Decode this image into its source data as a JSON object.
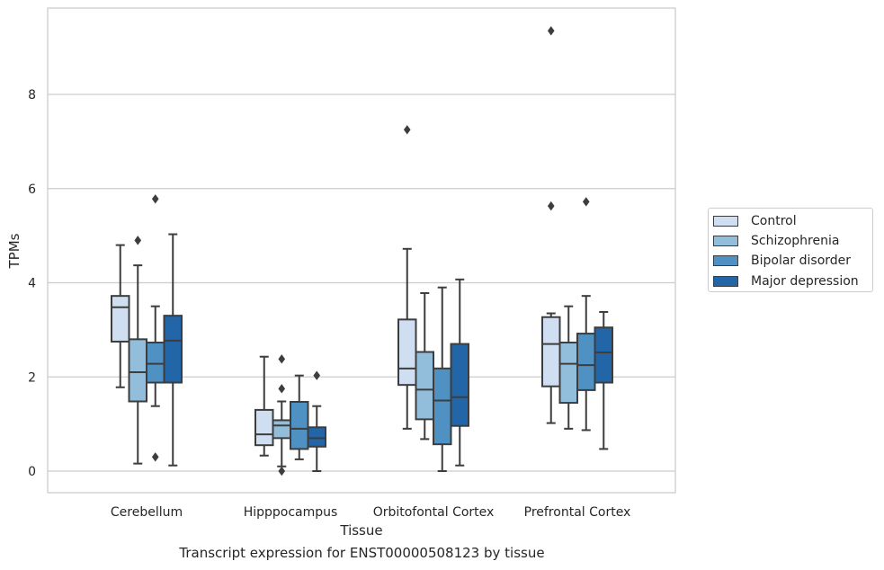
{
  "chart_data": {
    "type": "box",
    "title": "",
    "caption": "Transcript expression for ENST00000508123 by tissue",
    "xlabel": "Tissue",
    "ylabel": "TPMs",
    "ylim": [
      -0.45,
      9.8
    ],
    "yticks": [
      0,
      2,
      4,
      6,
      8
    ],
    "grid": "horizontal",
    "legend_position": "right",
    "categories": [
      "Cerebellum",
      "Hipppocampus",
      "Orbitofontal Cortex",
      "Prefrontal Cortex"
    ],
    "series": [
      {
        "name": "Control",
        "color": "#cfdef0",
        "boxes": [
          {
            "whislo": 1.78,
            "q1": 2.75,
            "med": 3.48,
            "q3": 3.72,
            "whishi": 4.8,
            "fliers": []
          },
          {
            "whislo": 0.33,
            "q1": 0.55,
            "med": 0.78,
            "q3": 1.3,
            "whishi": 2.43,
            "fliers": []
          },
          {
            "whislo": 0.9,
            "q1": 1.83,
            "med": 2.18,
            "q3": 3.22,
            "whishi": 4.72,
            "fliers": [
              7.25
            ]
          },
          {
            "whislo": 1.02,
            "q1": 1.8,
            "med": 2.7,
            "q3": 3.27,
            "whishi": 3.35,
            "fliers": [
              5.63,
              9.35
            ]
          }
        ]
      },
      {
        "name": "Schizophrenia",
        "color": "#92bedb",
        "boxes": [
          {
            "whislo": 0.16,
            "q1": 1.48,
            "med": 2.1,
            "q3": 2.8,
            "whishi": 4.37,
            "fliers": [
              4.9
            ]
          },
          {
            "whislo": 0.1,
            "q1": 0.7,
            "med": 0.97,
            "q3": 1.08,
            "whishi": 1.48,
            "fliers": [
              0.0,
              1.75,
              2.38
            ]
          },
          {
            "whislo": 0.68,
            "q1": 1.1,
            "med": 1.73,
            "q3": 2.53,
            "whishi": 3.78,
            "fliers": []
          },
          {
            "whislo": 0.9,
            "q1": 1.45,
            "med": 2.28,
            "q3": 2.73,
            "whishi": 3.5,
            "fliers": []
          }
        ]
      },
      {
        "name": "Bipolar disorder",
        "color": "#4e91c2",
        "boxes": [
          {
            "whislo": 1.38,
            "q1": 1.88,
            "med": 2.28,
            "q3": 2.73,
            "whishi": 3.5,
            "fliers": [
              0.3,
              5.78
            ]
          },
          {
            "whislo": 0.25,
            "q1": 0.47,
            "med": 0.9,
            "q3": 1.47,
            "whishi": 2.03,
            "fliers": []
          },
          {
            "whislo": 0.0,
            "q1": 0.57,
            "med": 1.5,
            "q3": 2.18,
            "whishi": 3.9,
            "fliers": []
          },
          {
            "whislo": 0.87,
            "q1": 1.72,
            "med": 2.25,
            "q3": 2.92,
            "whishi": 3.72,
            "fliers": [
              5.72
            ]
          }
        ]
      },
      {
        "name": "Major depression",
        "color": "#2366a8",
        "boxes": [
          {
            "whislo": 0.12,
            "q1": 1.88,
            "med": 2.77,
            "q3": 3.3,
            "whishi": 5.03,
            "fliers": []
          },
          {
            "whislo": 0.0,
            "q1": 0.52,
            "med": 0.7,
            "q3": 0.93,
            "whishi": 1.38,
            "fliers": [
              2.03
            ]
          },
          {
            "whislo": 0.12,
            "q1": 0.96,
            "med": 1.57,
            "q3": 2.7,
            "whishi": 4.07,
            "fliers": []
          },
          {
            "whislo": 0.47,
            "q1": 1.88,
            "med": 2.52,
            "q3": 3.05,
            "whishi": 3.38,
            "fliers": []
          }
        ]
      }
    ]
  }
}
